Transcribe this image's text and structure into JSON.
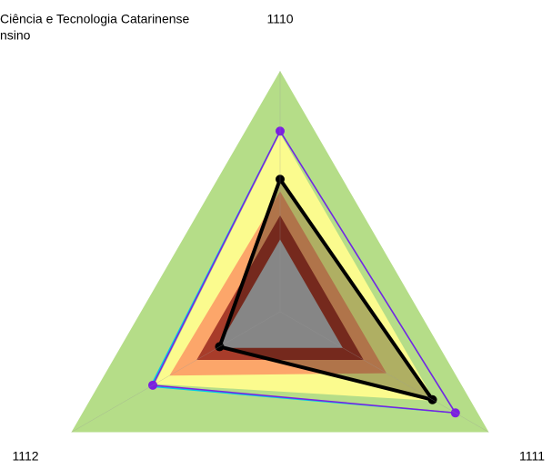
{
  "chart_data": {
    "type": "radar",
    "title_lines": [
      "Ciência e Tecnologia Catarinense",
      "nsino"
    ],
    "categories": [
      "1110",
      "1111",
      "1112"
    ],
    "rlim": [
      0,
      100
    ],
    "series": [
      {
        "color": "#b5dd88",
        "fill": true,
        "values": [
          100,
          100,
          100
        ]
      },
      {
        "color": "#fbfb8e",
        "fill": true,
        "values": [
          74,
          74,
          60
        ]
      },
      {
        "color": "#fca66a",
        "fill": true,
        "values": [
          50,
          51,
          53
        ]
      },
      {
        "color": "#a83c2a",
        "fill": true,
        "values": [
          40,
          40,
          40
        ]
      },
      {
        "color": "#c0c0c0",
        "fill": true,
        "values": [
          30,
          30,
          30
        ]
      },
      {
        "color": "#00c8e8",
        "fill": false,
        "values": [
          75,
          84,
          62
        ]
      },
      {
        "color": "#7b1fe0",
        "fill": false,
        "markers": true,
        "values": [
          75,
          84,
          61
        ]
      },
      {
        "color": "#000000",
        "fill": true,
        "fill_opacity": 0.3,
        "markers": true,
        "line_width": 4,
        "values": [
          55,
          73,
          29
        ]
      }
    ]
  }
}
